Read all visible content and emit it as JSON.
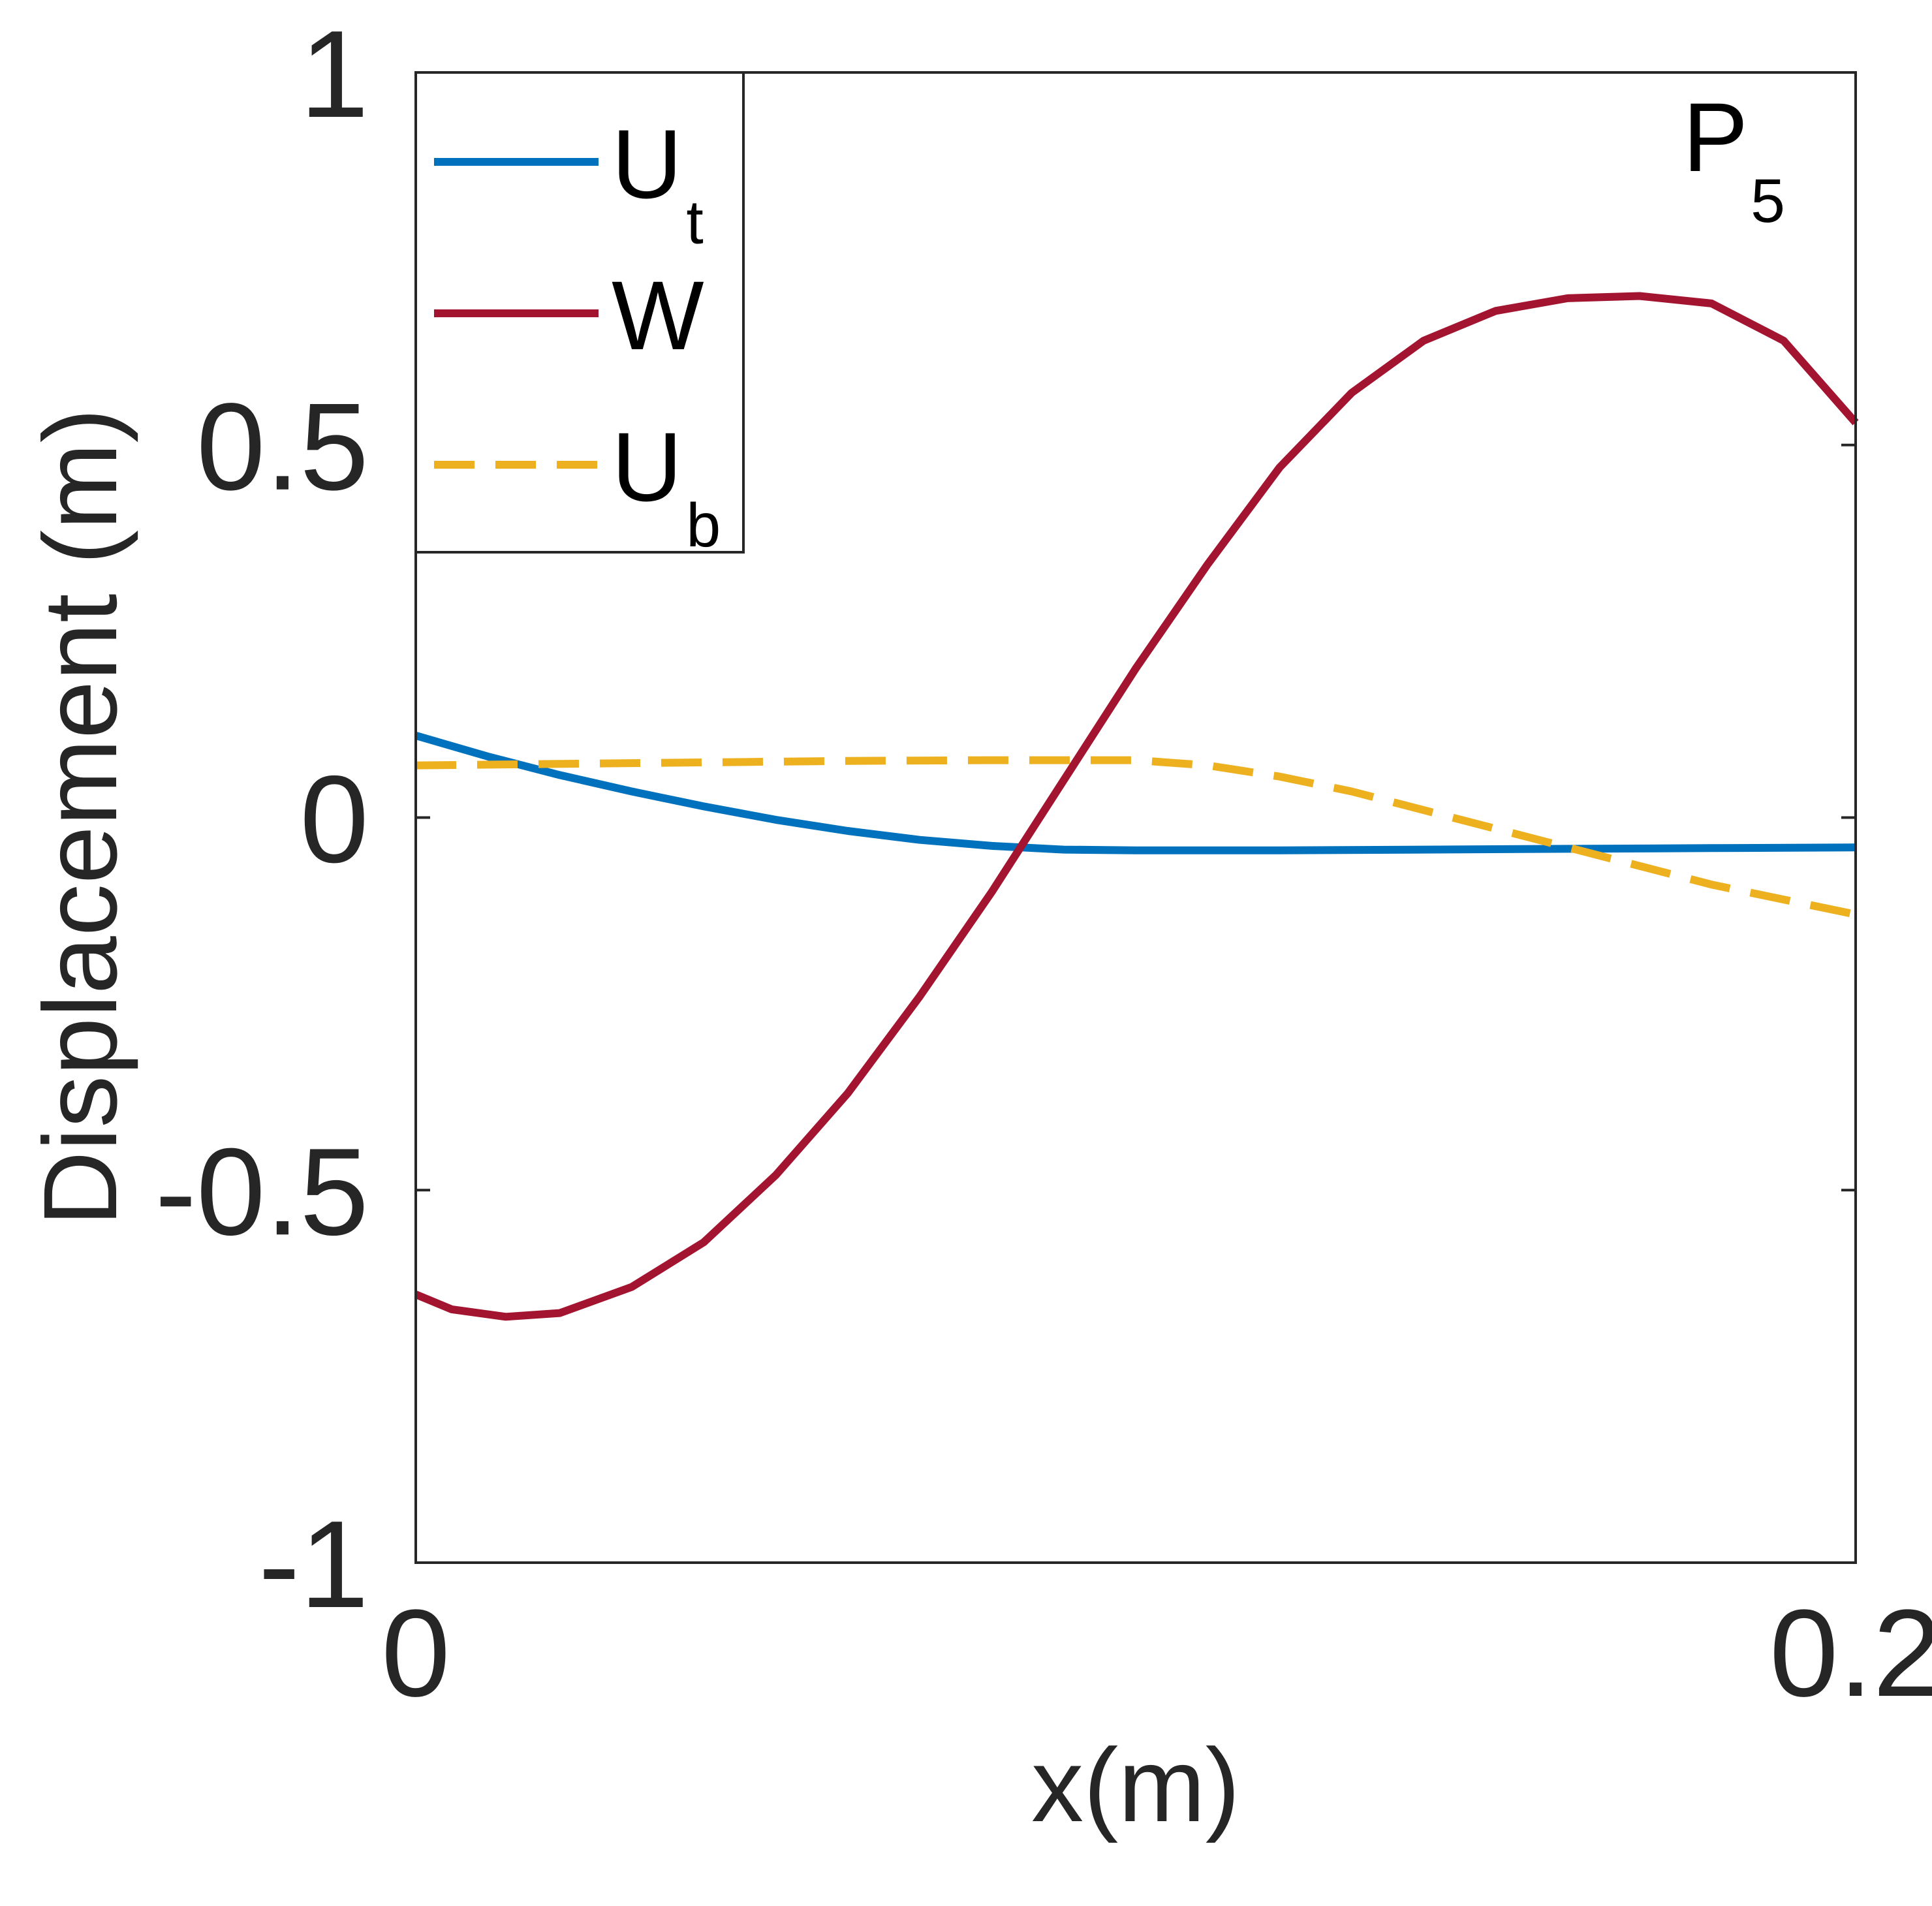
{
  "chart_data": {
    "type": "line",
    "xlabel": "x(m)",
    "ylabel": "Displacement (m)",
    "xlim": [
      0,
      0.2
    ],
    "ylim": [
      -1,
      1
    ],
    "x_ticks": [
      0,
      0.2
    ],
    "x_tick_labels": [
      "0",
      "0.2"
    ],
    "y_ticks": [
      -1,
      -0.5,
      0,
      0.5,
      1
    ],
    "y_tick_labels": [
      "-1",
      "-0.5",
      "0",
      "0.5",
      "1"
    ],
    "grid": false,
    "legend_position": "top-left",
    "annotation": {
      "text": "P",
      "sub": "5",
      "position": "top-right"
    },
    "series": [
      {
        "name": "U",
        "name_sub": "t",
        "color": "#0072BD",
        "style": "solid",
        "x": [
          0,
          0.01,
          0.02,
          0.03,
          0.04,
          0.05,
          0.06,
          0.07,
          0.08,
          0.09,
          0.1,
          0.12,
          0.14,
          0.16,
          0.18,
          0.2
        ],
        "y": [
          0.11,
          0.082,
          0.057,
          0.035,
          0.015,
          -0.003,
          -0.018,
          -0.03,
          -0.038,
          -0.043,
          -0.044,
          -0.044,
          -0.043,
          -0.042,
          -0.041,
          -0.04
        ]
      },
      {
        "name": "W",
        "name_sub": "",
        "color": "#A2142F",
        "style": "solid",
        "x": [
          0,
          0.005,
          0.0125,
          0.02,
          0.03,
          0.04,
          0.05,
          0.06,
          0.07,
          0.08,
          0.09,
          0.1,
          0.11,
          0.12,
          0.13,
          0.14,
          0.15,
          0.16,
          0.17,
          0.18,
          0.19,
          0.2
        ],
        "y": [
          -0.64,
          -0.66,
          -0.67,
          -0.665,
          -0.63,
          -0.57,
          -0.48,
          -0.37,
          -0.24,
          -0.1,
          0.05,
          0.2,
          0.34,
          0.47,
          0.57,
          0.64,
          0.68,
          0.697,
          0.7,
          0.69,
          0.64,
          0.53
        ]
      },
      {
        "name": "U",
        "name_sub": "b",
        "color": "#EDB120",
        "style": "dashed",
        "x": [
          0,
          0.02,
          0.04,
          0.06,
          0.08,
          0.1,
          0.11,
          0.12,
          0.13,
          0.14,
          0.15,
          0.16,
          0.17,
          0.18,
          0.19,
          0.2
        ],
        "y": [
          0.07,
          0.072,
          0.074,
          0.076,
          0.077,
          0.077,
          0.07,
          0.055,
          0.035,
          0.01,
          -0.015,
          -0.04,
          -0.065,
          -0.09,
          -0.11,
          -0.13
        ]
      }
    ]
  }
}
